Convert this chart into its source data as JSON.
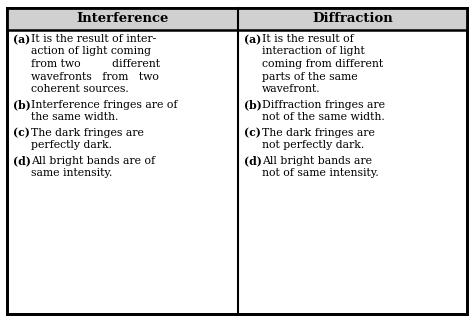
{
  "title_left": "Interference",
  "title_right": "Diffraction",
  "bg_color": "#ffffff",
  "text_color": "#000000",
  "header_bg": "#d0d0d0",
  "border_color": "#000000",
  "font_size": 7.8,
  "header_font_size": 9.5,
  "left_items": [
    {
      "label": "(a)",
      "lines": [
        "It is the result of inter-",
        "action of light coming",
        "from two         different",
        "wavefronts   from   two",
        "coherent sources."
      ]
    },
    {
      "label": "(b)",
      "lines": [
        "Interference fringes are of",
        "the same width."
      ]
    },
    {
      "label": "(c)",
      "lines": [
        "The dark fringes are",
        "perfectly dark."
      ]
    },
    {
      "label": "(d)",
      "lines": [
        "All bright bands are of",
        "same intensity."
      ]
    }
  ],
  "right_items": [
    {
      "label": "(a)",
      "lines": [
        "It is the result of",
        "interaction of light",
        "coming from different",
        "parts of the same",
        "wavefront."
      ]
    },
    {
      "label": "(b)",
      "lines": [
        "Diffraction fringes are",
        "not of the same width."
      ]
    },
    {
      "label": "(c)",
      "lines": [
        "The dark fringes are",
        "not perfectly dark."
      ]
    },
    {
      "label": "(d)",
      "lines": [
        "All bright bands are",
        "not of same intensity."
      ]
    }
  ]
}
